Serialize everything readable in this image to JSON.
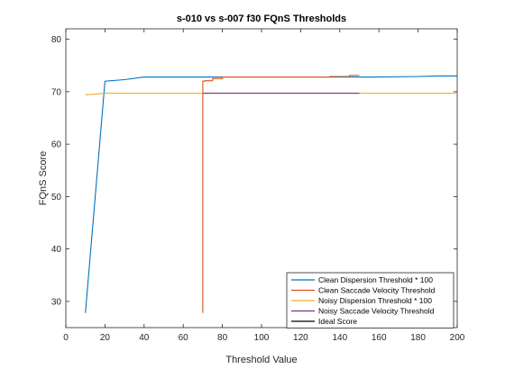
{
  "chart_data": {
    "type": "line",
    "title": "s-010 vs s-007 f30 FQnS Thresholds",
    "xlabel": "Threshold Value",
    "ylabel": "FQnS Score",
    "xlim": [
      0,
      200
    ],
    "ylim": [
      25,
      82
    ],
    "xticks": [
      0,
      20,
      40,
      60,
      80,
      100,
      120,
      140,
      160,
      180,
      200
    ],
    "yticks": [
      30,
      40,
      50,
      60,
      70,
      80
    ],
    "grid": false,
    "legend_position": "bottom-right",
    "series": [
      {
        "name": "Clean Dispersion Threshold * 100",
        "color": "#0072BD",
        "x": [
          10,
          20,
          30,
          40,
          80,
          100,
          130,
          160,
          180,
          190,
          200
        ],
        "y": [
          27.8,
          72.0,
          72.3,
          72.8,
          72.8,
          72.8,
          72.8,
          72.8,
          72.9,
          73.0,
          73.0
        ]
      },
      {
        "name": "Clean Saccade Velocity Threshold",
        "color": "#D95319",
        "x": [
          70,
          70,
          71,
          71,
          75,
          75,
          80,
          80,
          90,
          130,
          135,
          135,
          145,
          145,
          150
        ],
        "y": [
          27.8,
          72.0,
          72.0,
          72.1,
          72.1,
          72.5,
          72.5,
          72.8,
          72.8,
          72.8,
          72.8,
          72.9,
          72.9,
          73.1,
          73.1
        ]
      },
      {
        "name": "Noisy Dispersion Threshold * 100",
        "color": "#EDB120",
        "x": [
          10,
          20,
          40,
          60,
          80,
          100,
          120,
          140,
          160,
          180,
          200
        ],
        "y": [
          69.4,
          69.7,
          69.7,
          69.7,
          69.7,
          69.7,
          69.7,
          69.7,
          69.7,
          69.7,
          69.7
        ]
      },
      {
        "name": "Noisy Saccade Velocity Threshold",
        "color": "#7E2F8E",
        "x": [
          70,
          80,
          100,
          120,
          140,
          150
        ],
        "y": [
          69.7,
          69.7,
          69.7,
          69.7,
          69.7,
          69.7
        ]
      },
      {
        "name": "Ideal Score",
        "color": "#000000",
        "x": [],
        "y": []
      }
    ]
  }
}
